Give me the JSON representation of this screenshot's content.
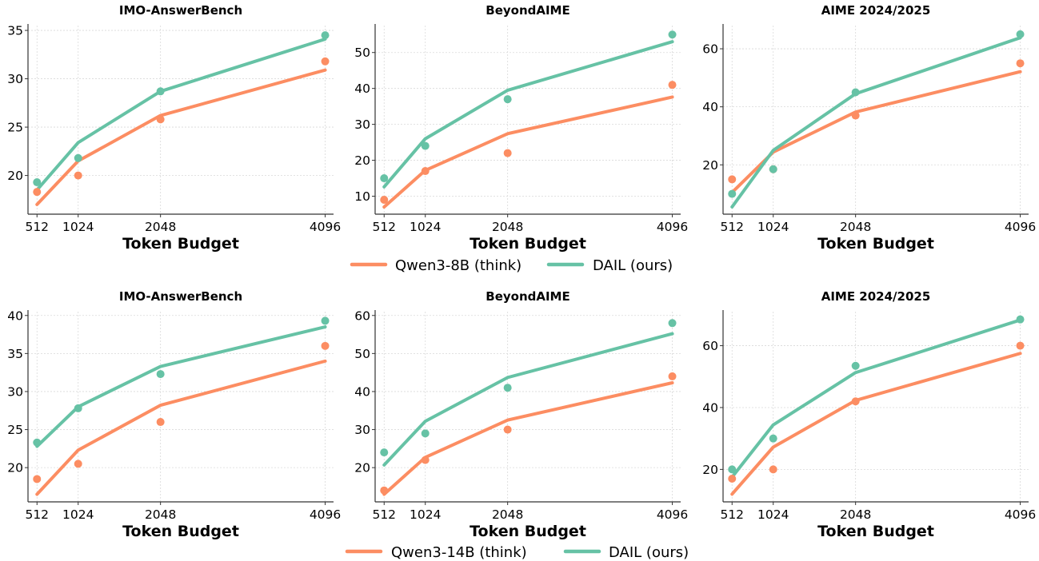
{
  "colors": {
    "baseline": "#fc8d62",
    "ours": "#66c2a5"
  },
  "xlabel": "Token Budget",
  "legends": [
    {
      "baseline": "Qwen3-8B (think)",
      "ours": "DAIL (ours)"
    },
    {
      "baseline": "Qwen3-14B (think)",
      "ours": "DAIL (ours)"
    }
  ],
  "chart_data": [
    {
      "type": "line",
      "title": "IMO-AnswerBench",
      "xlabel": "Token Budget",
      "x": [
        512,
        1024,
        2048,
        4096
      ],
      "xlim": [
        400,
        4200
      ],
      "ylim": [
        16,
        35.5
      ],
      "yticks": [
        20,
        25,
        30,
        35
      ],
      "series": [
        {
          "name": "Qwen3-8B (think)",
          "color": "#fc8d62",
          "trend": [
            17.0,
            21.5,
            26.2,
            30.9
          ],
          "points": [
            18.3,
            20.0,
            25.8,
            31.8
          ]
        },
        {
          "name": "DAIL (ours)",
          "color": "#66c2a5",
          "trend": [
            18.5,
            23.4,
            28.7,
            34.1
          ],
          "points": [
            19.3,
            21.8,
            28.7,
            34.5
          ]
        }
      ]
    },
    {
      "type": "line",
      "title": "BeyondAIME",
      "xlabel": "Token Budget",
      "x": [
        512,
        1024,
        2048,
        4096
      ],
      "xlim": [
        400,
        4200
      ],
      "ylim": [
        5,
        57.5
      ],
      "yticks": [
        10,
        20,
        30,
        40,
        50
      ],
      "series": [
        {
          "name": "Qwen3-8B (think)",
          "color": "#fc8d62",
          "trend": [
            7.0,
            17.2,
            27.4,
            37.6
          ],
          "points": [
            9.0,
            17.0,
            22.0,
            41.0
          ]
        },
        {
          "name": "DAIL (ours)",
          "color": "#66c2a5",
          "trend": [
            12.6,
            26.0,
            39.5,
            53.0
          ],
          "points": [
            15.0,
            24.0,
            37.0,
            55.0
          ]
        }
      ]
    },
    {
      "type": "line",
      "title": "AIME 2024/2025",
      "xlabel": "Token Budget",
      "x": [
        512,
        1024,
        2048,
        4096
      ],
      "xlim": [
        400,
        4200
      ],
      "ylim": [
        3,
        68
      ],
      "yticks": [
        20,
        40,
        60
      ],
      "series": [
        {
          "name": "Qwen3-8B (think)",
          "color": "#fc8d62",
          "trend": [
            10.5,
            24.4,
            38.2,
            52.1
          ],
          "points": [
            15.0,
            18.5,
            37.0,
            55.0
          ]
        },
        {
          "name": "DAIL (ours)",
          "color": "#66c2a5",
          "trend": [
            5.5,
            25.0,
            44.5,
            63.8
          ],
          "points": [
            10.0,
            18.5,
            45.0,
            65.0
          ]
        }
      ]
    },
    {
      "type": "line",
      "title": "IMO-AnswerBench",
      "xlabel": "Token Budget",
      "x": [
        512,
        1024,
        2048,
        4096
      ],
      "xlim": [
        400,
        4200
      ],
      "ylim": [
        15.5,
        40.5
      ],
      "yticks": [
        20,
        25,
        30,
        35,
        40
      ],
      "series": [
        {
          "name": "Qwen3-14B (think)",
          "color": "#fc8d62",
          "trend": [
            16.5,
            22.3,
            28.2,
            34.0
          ],
          "points": [
            18.5,
            20.5,
            26.0,
            36.0
          ]
        },
        {
          "name": "DAIL (ours)",
          "color": "#66c2a5",
          "trend": [
            22.8,
            28.0,
            33.3,
            38.5
          ],
          "points": [
            23.3,
            27.8,
            32.3,
            39.3
          ]
        }
      ]
    },
    {
      "type": "line",
      "title": "BeyondAIME",
      "xlabel": "Token Budget",
      "x": [
        512,
        1024,
        2048,
        4096
      ],
      "xlim": [
        400,
        4200
      ],
      "ylim": [
        11,
        61
      ],
      "yticks": [
        20,
        30,
        40,
        50,
        60
      ],
      "series": [
        {
          "name": "Qwen3-14B (think)",
          "color": "#fc8d62",
          "trend": [
            13.0,
            22.7,
            32.5,
            42.3
          ],
          "points": [
            14.0,
            22.0,
            30.0,
            44.0
          ]
        },
        {
          "name": "DAIL (ours)",
          "color": "#66c2a5",
          "trend": [
            20.7,
            32.2,
            43.7,
            55.2
          ],
          "points": [
            24.0,
            29.0,
            41.0,
            58.0
          ]
        }
      ]
    },
    {
      "type": "line",
      "title": "AIME 2024/2025",
      "xlabel": "Token Budget",
      "x": [
        512,
        1024,
        2048,
        4096
      ],
      "xlim": [
        400,
        4200
      ],
      "ylim": [
        9.5,
        71
      ],
      "yticks": [
        20,
        40,
        60
      ],
      "series": [
        {
          "name": "Qwen3-14B (think)",
          "color": "#fc8d62",
          "trend": [
            12.0,
            27.2,
            42.3,
            57.5
          ],
          "points": [
            17.0,
            20.0,
            42.0,
            60.0
          ]
        },
        {
          "name": "DAIL (ours)",
          "color": "#66c2a5",
          "trend": [
            17.5,
            34.4,
            51.3,
            68.3
          ],
          "points": [
            20.0,
            30.0,
            53.5,
            68.5
          ]
        }
      ]
    }
  ]
}
